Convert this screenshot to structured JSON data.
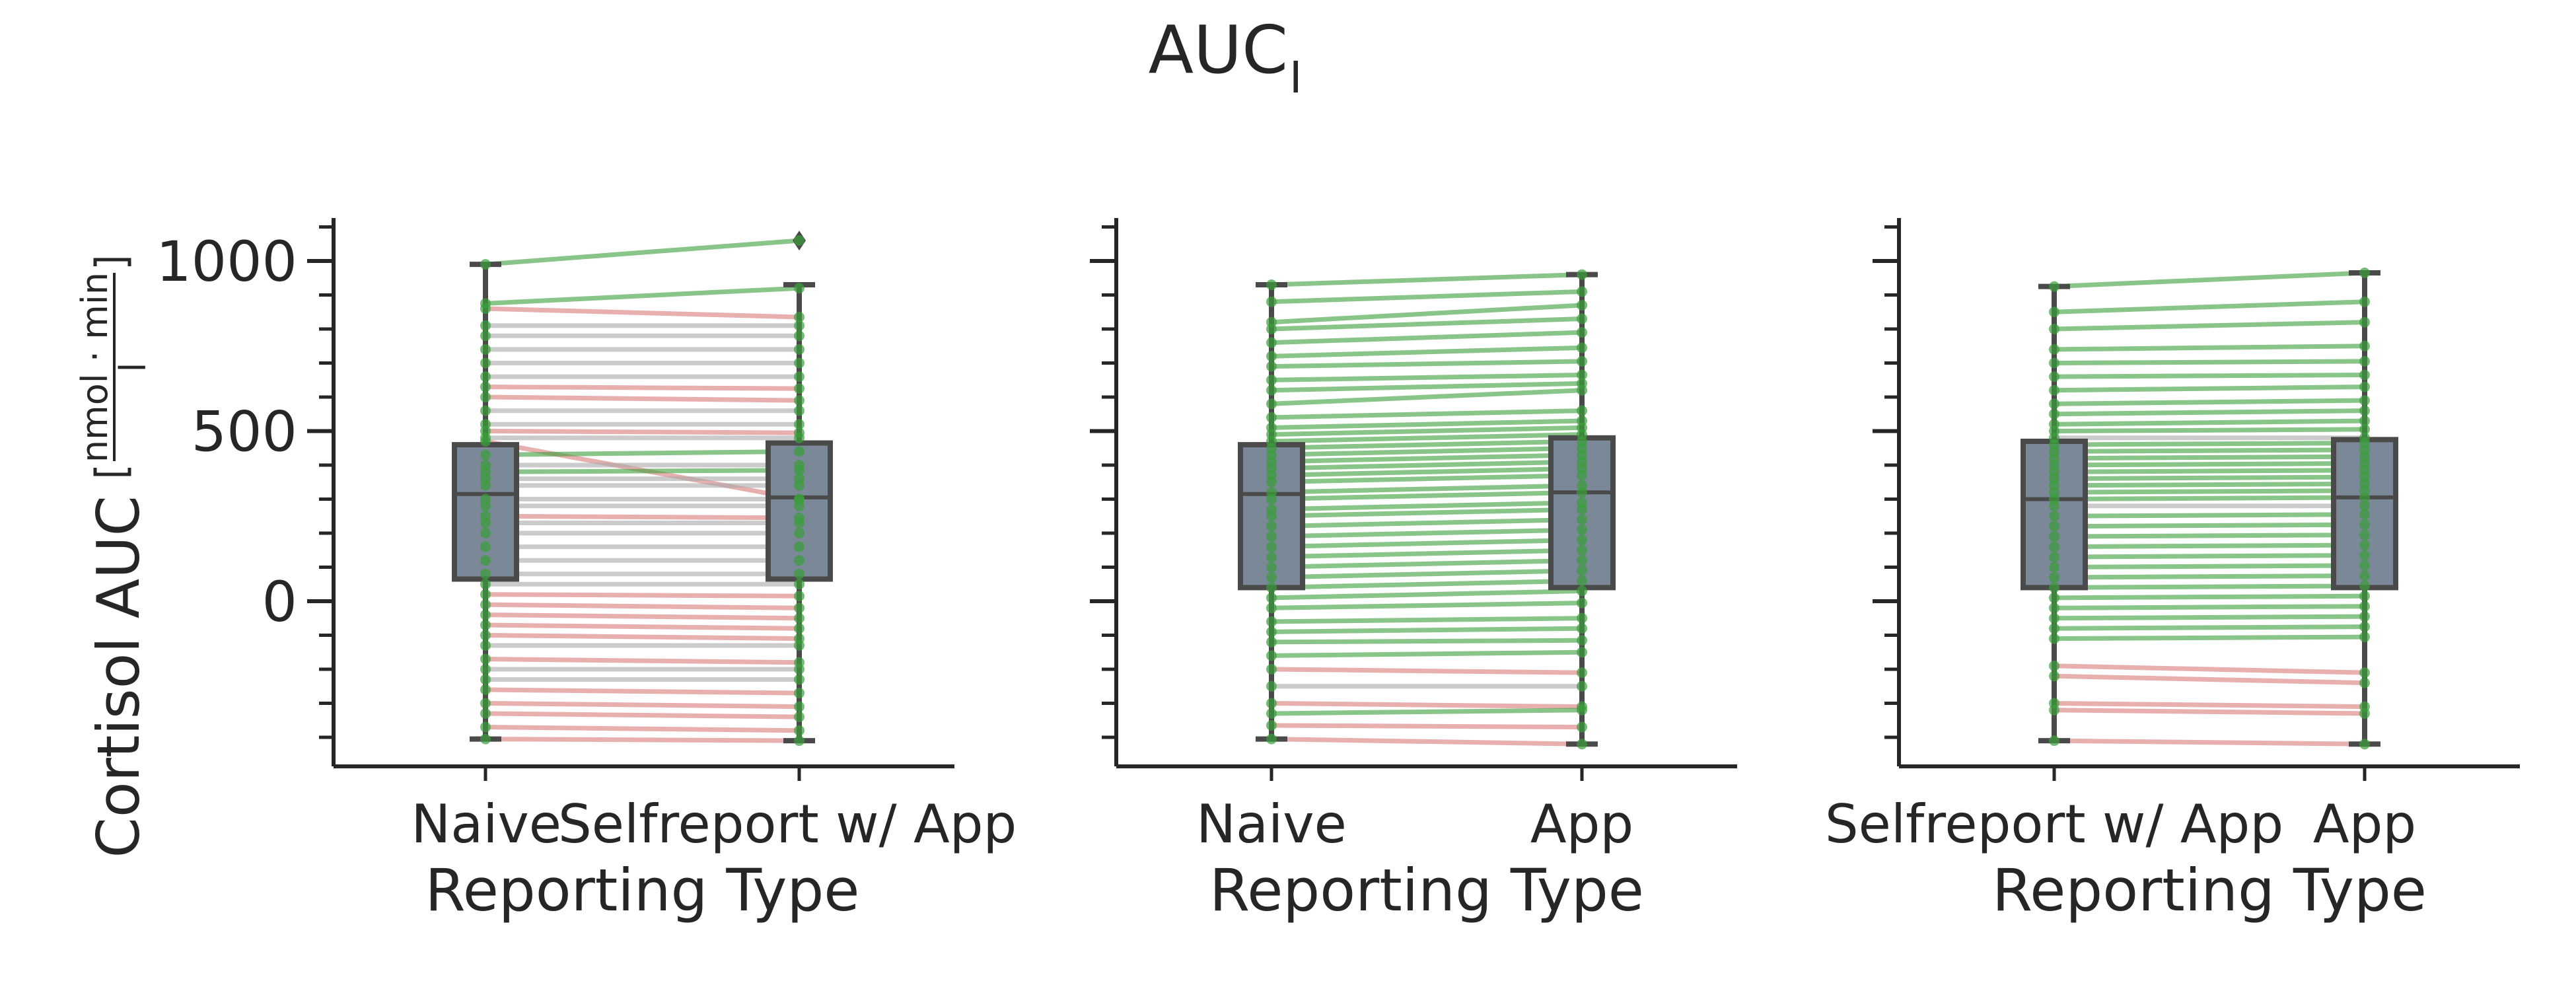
{
  "title": {
    "main": "AUC",
    "subscript": "I"
  },
  "y_axis": {
    "label": "Cortisol AUC",
    "unit_numerator": "nmol · min",
    "unit_denominator": "l",
    "ticks": [
      0,
      500,
      1000
    ],
    "tick_labels": [
      "0",
      "500",
      "1000"
    ],
    "minor_ticks": [
      -400,
      -300,
      -200,
      -100,
      100,
      200,
      300,
      400,
      600,
      700,
      800,
      900,
      1100
    ],
    "range": [
      -490,
      1140
    ]
  },
  "colors": {
    "increase": "#3a9e3a",
    "decrease": "#d97a7a",
    "no_change": "#a8a8a8",
    "box_fill": "#7a8898",
    "box_edge": "#4a4a4a",
    "axis": "#262626"
  },
  "chart_data": [
    {
      "type": "box",
      "xlabel": "Reporting Type",
      "categories": [
        "Naive",
        "Selfreport w/ App"
      ],
      "boxes": [
        {
          "category": "Naive",
          "whisker_low": -405,
          "q1": 65,
          "median": 315,
          "q3": 460,
          "whisker_high": 990,
          "outliers": []
        },
        {
          "category": "Selfreport w/ App",
          "whisker_low": -410,
          "q1": 65,
          "median": 305,
          "q3": 465,
          "whisker_high": 930,
          "outliers": [
            1060
          ]
        }
      ],
      "pairs": [
        [
          990,
          1060
        ],
        [
          875,
          920
        ],
        [
          860,
          835
        ],
        [
          810,
          810
        ],
        [
          780,
          780
        ],
        [
          740,
          740
        ],
        [
          700,
          700
        ],
        [
          660,
          660
        ],
        [
          630,
          625
        ],
        [
          600,
          590
        ],
        [
          560,
          560
        ],
        [
          520,
          520
        ],
        [
          500,
          495
        ],
        [
          480,
          480
        ],
        [
          470,
          300
        ],
        [
          430,
          440
        ],
        [
          400,
          400
        ],
        [
          380,
          385
        ],
        [
          360,
          360
        ],
        [
          340,
          340
        ],
        [
          300,
          300
        ],
        [
          280,
          280
        ],
        [
          250,
          245
        ],
        [
          230,
          230
        ],
        [
          200,
          200
        ],
        [
          160,
          160
        ],
        [
          120,
          120
        ],
        [
          80,
          80
        ],
        [
          50,
          50
        ],
        [
          20,
          15
        ],
        [
          -10,
          -20
        ],
        [
          -40,
          -50
        ],
        [
          -70,
          -80
        ],
        [
          -100,
          -110
        ],
        [
          -130,
          -130
        ],
        [
          -170,
          -180
        ],
        [
          -200,
          -200
        ],
        [
          -230,
          -230
        ],
        [
          -260,
          -270
        ],
        [
          -300,
          -310
        ],
        [
          -330,
          -340
        ],
        [
          -370,
          -380
        ],
        [
          -405,
          -410
        ]
      ]
    },
    {
      "type": "box",
      "xlabel": "Reporting Type",
      "categories": [
        "Naive",
        "App"
      ],
      "boxes": [
        {
          "category": "Naive",
          "whisker_low": -405,
          "q1": 40,
          "median": 315,
          "q3": 460,
          "whisker_high": 930,
          "outliers": []
        },
        {
          "category": "App",
          "whisker_low": -420,
          "q1": 40,
          "median": 320,
          "q3": 480,
          "whisker_high": 960,
          "outliers": []
        }
      ],
      "pairs": [
        [
          930,
          960
        ],
        [
          880,
          910
        ],
        [
          820,
          870
        ],
        [
          800,
          830
        ],
        [
          760,
          790
        ],
        [
          720,
          745
        ],
        [
          690,
          705
        ],
        [
          650,
          665
        ],
        [
          620,
          640
        ],
        [
          580,
          620
        ],
        [
          540,
          560
        ],
        [
          510,
          530
        ],
        [
          490,
          510
        ],
        [
          470,
          490
        ],
        [
          450,
          470
        ],
        [
          430,
          450
        ],
        [
          410,
          430
        ],
        [
          390,
          410
        ],
        [
          370,
          390
        ],
        [
          350,
          370
        ],
        [
          320,
          340
        ],
        [
          300,
          320
        ],
        [
          270,
          290
        ],
        [
          250,
          270
        ],
        [
          220,
          240
        ],
        [
          190,
          210
        ],
        [
          160,
          180
        ],
        [
          130,
          150
        ],
        [
          100,
          120
        ],
        [
          70,
          90
        ],
        [
          40,
          60
        ],
        [
          10,
          30
        ],
        [
          -20,
          -5
        ],
        [
          -60,
          -50
        ],
        [
          -90,
          -80
        ],
        [
          -120,
          -115
        ],
        [
          -160,
          -150
        ],
        [
          -200,
          -210
        ],
        [
          -250,
          -250
        ],
        [
          -300,
          -310
        ],
        [
          -330,
          -320
        ],
        [
          -365,
          -370
        ],
        [
          -405,
          -420
        ]
      ]
    },
    {
      "type": "box",
      "xlabel": "Reporting Type",
      "categories": [
        "Selfreport w/ App",
        "App"
      ],
      "boxes": [
        {
          "category": "Selfreport w/ App",
          "whisker_low": -410,
          "q1": 40,
          "median": 300,
          "q3": 470,
          "whisker_high": 925,
          "outliers": []
        },
        {
          "category": "App",
          "whisker_low": -420,
          "q1": 40,
          "median": 305,
          "q3": 475,
          "whisker_high": 965,
          "outliers": []
        }
      ],
      "pairs": [
        [
          925,
          965
        ],
        [
          850,
          880
        ],
        [
          800,
          820
        ],
        [
          740,
          750
        ],
        [
          700,
          705
        ],
        [
          660,
          665
        ],
        [
          620,
          630
        ],
        [
          580,
          590
        ],
        [
          550,
          560
        ],
        [
          520,
          530
        ],
        [
          500,
          505
        ],
        [
          480,
          480
        ],
        [
          460,
          465
        ],
        [
          440,
          445
        ],
        [
          420,
          425
        ],
        [
          400,
          405
        ],
        [
          380,
          385
        ],
        [
          360,
          365
        ],
        [
          340,
          345
        ],
        [
          320,
          325
        ],
        [
          300,
          305
        ],
        [
          280,
          280
        ],
        [
          250,
          255
        ],
        [
          220,
          225
        ],
        [
          190,
          195
        ],
        [
          160,
          165
        ],
        [
          130,
          135
        ],
        [
          100,
          105
        ],
        [
          70,
          75
        ],
        [
          40,
          45
        ],
        [
          10,
          15
        ],
        [
          -20,
          -15
        ],
        [
          -50,
          -45
        ],
        [
          -80,
          -75
        ],
        [
          -110,
          -105
        ],
        [
          -190,
          -210
        ],
        [
          -220,
          -240
        ],
        [
          -300,
          -310
        ],
        [
          -320,
          -330
        ],
        [
          -410,
          -420
        ]
      ]
    }
  ]
}
